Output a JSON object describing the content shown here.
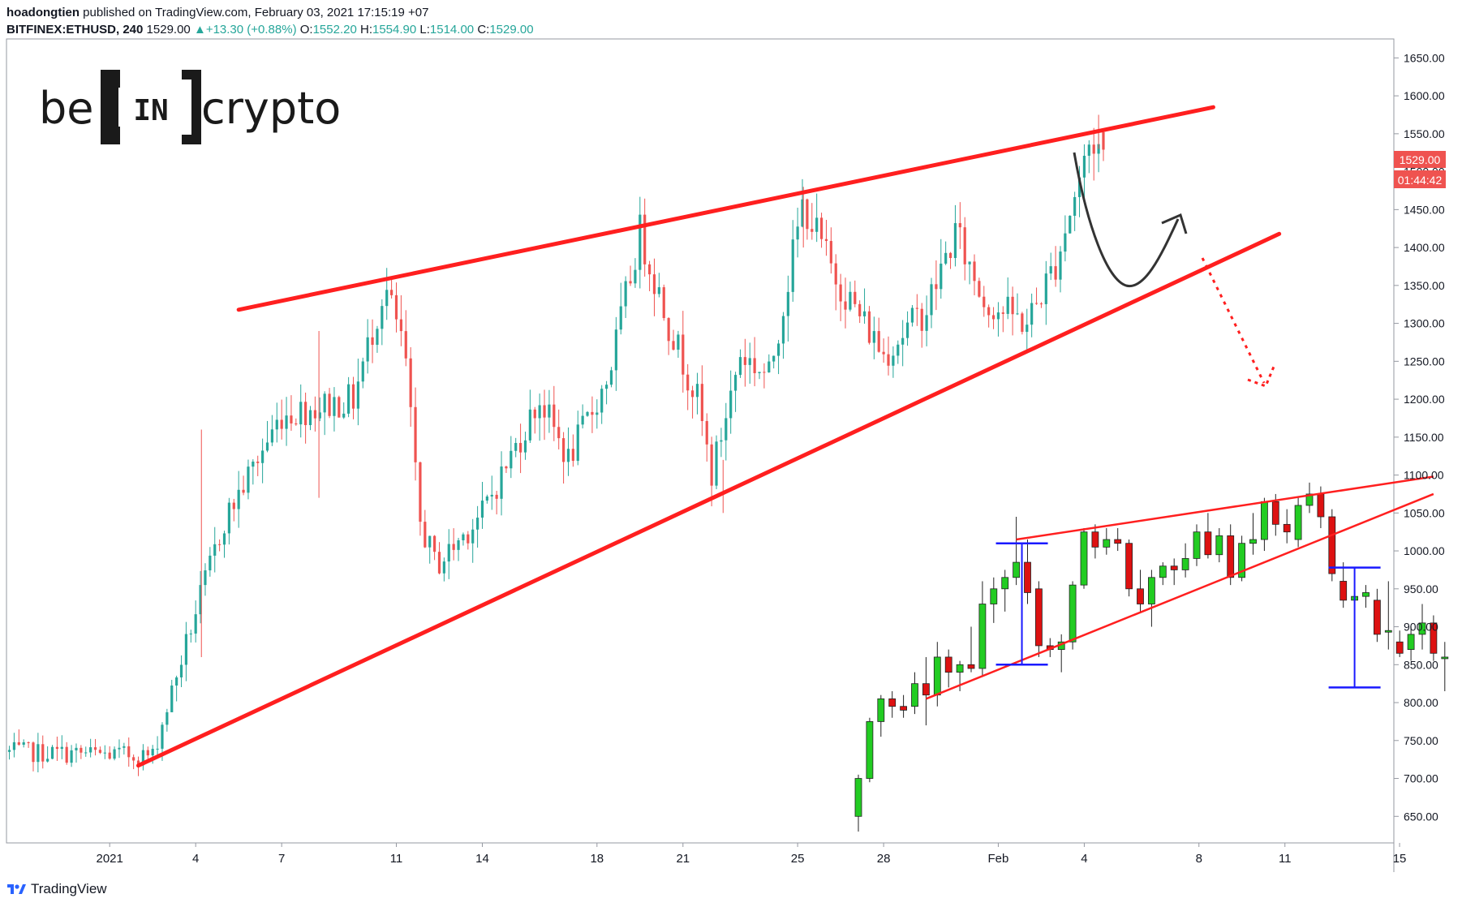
{
  "header": {
    "author": "hoadongtien",
    "published": "published on TradingView.com, February 03, 2021 17:15:19 +07",
    "symbol": "BITFINEX:ETHUSD, 240",
    "last": "1529.00",
    "change_arrow": "▲",
    "change": "+13.30 (+0.88%)",
    "o_label": "O:",
    "o_value": "1552.20",
    "h_label": "H:",
    "h_value": "1554.90",
    "l_label": "L:",
    "l_value": "1514.00",
    "c_label": "C:",
    "c_value": "1529.00"
  },
  "logo": {
    "text_left": "be",
    "text_mid": "IN",
    "text_right": "crypto"
  },
  "price_tags": {
    "last": "1529.00",
    "countdown": "01:44:42"
  },
  "footer": {
    "brand": "TradingView"
  },
  "colors": {
    "up": "#26a69a",
    "down": "#ef5350",
    "trendline": "#ff1f1f",
    "inset_up": "#22cc22",
    "inset_down": "#dd1111",
    "inset_measure": "#1a1aff",
    "arrow": "#333333"
  },
  "chart_data": {
    "type": "candlestick",
    "timeframe": "240",
    "y_axis": {
      "ticks": [
        650,
        700,
        750,
        800,
        850,
        900,
        950,
        1000,
        1050,
        1100,
        1150,
        1200,
        1250,
        1300,
        1350,
        1400,
        1450,
        1500,
        1550,
        1600,
        1650
      ],
      "tick_labels": [
        "650.00",
        "700.00",
        "750.00",
        "800.00",
        "850.00",
        "900.00",
        "950.00",
        "1000.00",
        "1050.00",
        "1100.00",
        "1150.00",
        "1200.00",
        "1250.00",
        "1300.00",
        "1350.00",
        "1400.00",
        "1450.00",
        "1500.00",
        "1550.00",
        "1600.00",
        "1650.00"
      ],
      "ylim": [
        615,
        1675
      ]
    },
    "x_axis": {
      "tick_labels": [
        "2021",
        "4",
        "7",
        "11",
        "14",
        "18",
        "21",
        "25",
        "28",
        "Feb",
        "4",
        "8",
        "11",
        "15"
      ],
      "tick_days": [
        1,
        4,
        7,
        11,
        14,
        18,
        21,
        25,
        28,
        32,
        35,
        39,
        42,
        46
      ],
      "xlim": [
        -2.6,
        45.8
      ]
    },
    "candles_summary": {
      "first_visible_price": 735,
      "high": 1575,
      "last_close": 1529.0,
      "last_open": 1552.2,
      "last_high": 1554.9,
      "last_low": 1514.0
    },
    "key_points": [
      {
        "day": -2.5,
        "price": 735
      },
      {
        "day": 2.5,
        "price": 730
      },
      {
        "day": 4,
        "price": 920
      },
      {
        "day": 5,
        "price": 1040
      },
      {
        "day": 7,
        "price": 1180
      },
      {
        "day": 9.5,
        "price": 1200
      },
      {
        "day": 10.6,
        "price": 1350
      },
      {
        "day": 11.3,
        "price": 1260
      },
      {
        "day": 11.8,
        "price": 1040
      },
      {
        "day": 12.4,
        "price": 980
      },
      {
        "day": 14,
        "price": 1050
      },
      {
        "day": 16,
        "price": 1200
      },
      {
        "day": 17,
        "price": 1120
      },
      {
        "day": 18.4,
        "price": 1230
      },
      {
        "day": 19.5,
        "price": 1420
      },
      {
        "day": 20.5,
        "price": 1300
      },
      {
        "day": 21.5,
        "price": 1200
      },
      {
        "day": 22,
        "price": 1100
      },
      {
        "day": 23,
        "price": 1260
      },
      {
        "day": 24,
        "price": 1230
      },
      {
        "day": 25.2,
        "price": 1460
      },
      {
        "day": 26.2,
        "price": 1370
      },
      {
        "day": 27,
        "price": 1320
      },
      {
        "day": 28,
        "price": 1260
      },
      {
        "day": 29.5,
        "price": 1320
      },
      {
        "day": 30.5,
        "price": 1420
      },
      {
        "day": 31.5,
        "price": 1330
      },
      {
        "day": 33,
        "price": 1300
      },
      {
        "day": 34,
        "price": 1380
      },
      {
        "day": 35.2,
        "price": 1540
      },
      {
        "day": 35.8,
        "price": 1529
      }
    ],
    "trendlines": [
      {
        "name": "upper",
        "from": {
          "day": 5.5,
          "price": 1318
        },
        "to": {
          "day": 39.5,
          "price": 1585
        }
      },
      {
        "name": "lower",
        "from": {
          "day": 2,
          "price": 717
        },
        "to": {
          "day": 41.8,
          "price": 1418
        }
      }
    ],
    "inset": {
      "type": "candlestick",
      "style": "rising wedge example",
      "candles": [
        {
          "o": 650,
          "h": 705,
          "l": 630,
          "c": 700
        },
        {
          "o": 700,
          "h": 780,
          "l": 695,
          "c": 775
        },
        {
          "o": 775,
          "h": 810,
          "l": 755,
          "c": 805
        },
        {
          "o": 805,
          "h": 815,
          "l": 780,
          "c": 795
        },
        {
          "o": 795,
          "h": 810,
          "l": 780,
          "c": 790
        },
        {
          "o": 795,
          "h": 840,
          "l": 785,
          "c": 825
        },
        {
          "o": 825,
          "h": 860,
          "l": 770,
          "c": 810
        },
        {
          "o": 810,
          "h": 880,
          "l": 795,
          "c": 860
        },
        {
          "o": 860,
          "h": 870,
          "l": 820,
          "c": 840
        },
        {
          "o": 840,
          "h": 855,
          "l": 815,
          "c": 850
        },
        {
          "o": 850,
          "h": 900,
          "l": 840,
          "c": 845
        },
        {
          "o": 845,
          "h": 960,
          "l": 835,
          "c": 930
        },
        {
          "o": 930,
          "h": 965,
          "l": 905,
          "c": 950
        },
        {
          "o": 950,
          "h": 975,
          "l": 920,
          "c": 965
        },
        {
          "o": 965,
          "h": 1045,
          "l": 955,
          "c": 985
        },
        {
          "o": 985,
          "h": 1015,
          "l": 930,
          "c": 945
        },
        {
          "o": 950,
          "h": 960,
          "l": 860,
          "c": 875
        },
        {
          "o": 875,
          "h": 885,
          "l": 860,
          "c": 870
        },
        {
          "o": 870,
          "h": 890,
          "l": 840,
          "c": 880
        },
        {
          "o": 880,
          "h": 960,
          "l": 870,
          "c": 955
        },
        {
          "o": 955,
          "h": 1030,
          "l": 950,
          "c": 1025
        },
        {
          "o": 1025,
          "h": 1035,
          "l": 990,
          "c": 1005
        },
        {
          "o": 1005,
          "h": 1030,
          "l": 995,
          "c": 1015
        },
        {
          "o": 1015,
          "h": 1030,
          "l": 1000,
          "c": 1010
        },
        {
          "o": 1010,
          "h": 1015,
          "l": 940,
          "c": 950
        },
        {
          "o": 950,
          "h": 975,
          "l": 920,
          "c": 930
        },
        {
          "o": 930,
          "h": 975,
          "l": 900,
          "c": 965
        },
        {
          "o": 965,
          "h": 985,
          "l": 955,
          "c": 980
        },
        {
          "o": 980,
          "h": 990,
          "l": 955,
          "c": 975
        },
        {
          "o": 975,
          "h": 1010,
          "l": 965,
          "c": 990
        },
        {
          "o": 990,
          "h": 1035,
          "l": 980,
          "c": 1025
        },
        {
          "o": 1025,
          "h": 1050,
          "l": 990,
          "c": 995
        },
        {
          "o": 995,
          "h": 1030,
          "l": 985,
          "c": 1020
        },
        {
          "o": 1020,
          "h": 1035,
          "l": 955,
          "c": 965
        },
        {
          "o": 965,
          "h": 1020,
          "l": 960,
          "c": 1010
        },
        {
          "o": 1010,
          "h": 1050,
          "l": 995,
          "c": 1015
        },
        {
          "o": 1015,
          "h": 1070,
          "l": 1000,
          "c": 1065
        },
        {
          "o": 1065,
          "h": 1075,
          "l": 1020,
          "c": 1035
        },
        {
          "o": 1035,
          "h": 1055,
          "l": 1010,
          "c": 1025
        },
        {
          "o": 1015,
          "h": 1070,
          "l": 1005,
          "c": 1060
        },
        {
          "o": 1060,
          "h": 1090,
          "l": 1050,
          "c": 1075
        },
        {
          "o": 1075,
          "h": 1085,
          "l": 1030,
          "c": 1045
        },
        {
          "o": 1045,
          "h": 1055,
          "l": 960,
          "c": 970
        },
        {
          "o": 960,
          "h": 985,
          "l": 925,
          "c": 935
        },
        {
          "o": 935,
          "h": 960,
          "l": 920,
          "c": 940
        },
        {
          "o": 940,
          "h": 955,
          "l": 925,
          "c": 945
        },
        {
          "o": 935,
          "h": 950,
          "l": 880,
          "c": 890
        },
        {
          "o": 895,
          "h": 960,
          "l": 870,
          "c": 895
        },
        {
          "o": 880,
          "h": 895,
          "l": 860,
          "c": 865
        },
        {
          "o": 870,
          "h": 900,
          "l": 855,
          "c": 890
        },
        {
          "o": 890,
          "h": 930,
          "l": 870,
          "c": 905
        },
        {
          "o": 905,
          "h": 915,
          "l": 855,
          "c": 865
        },
        {
          "o": 860,
          "h": 880,
          "l": 815,
          "c": 860
        }
      ],
      "wedge_lines": [
        {
          "name": "upper",
          "from": {
            "i": 14,
            "price": 1015
          },
          "to": {
            "i": 51,
            "price": 1098
          }
        },
        {
          "name": "lower",
          "from": {
            "i": 6,
            "price": 805
          },
          "to": {
            "i": 51,
            "price": 1075
          }
        }
      ],
      "measures": [
        {
          "i": 14.5,
          "top": 1010,
          "bottom": 850
        },
        {
          "i": 44,
          "top": 978,
          "bottom": 820
        }
      ]
    }
  }
}
